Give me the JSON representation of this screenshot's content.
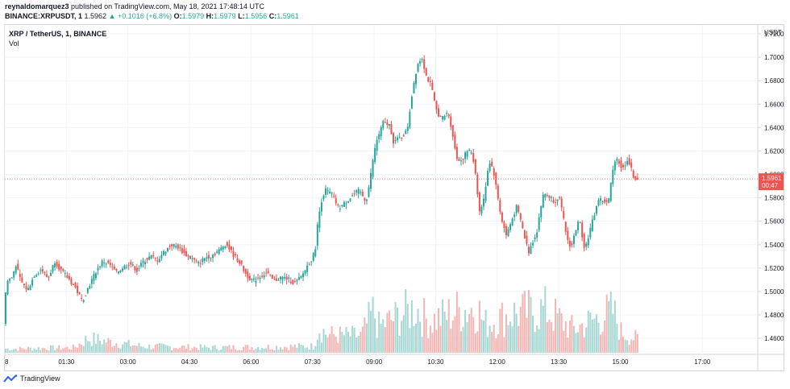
{
  "header": {
    "author": "reynaldomarquez3",
    "published_text": "published on TradingView.com, May 18, 2021 17:48:14 UTC",
    "symbol_line": "BINANCE:XRPUSDT, 1",
    "last": "1.5962",
    "change": "+0.1016 (+6.8%)",
    "o_label": "O:",
    "o_val": "1.5979",
    "h_label": "H:",
    "h_val": "1.5979",
    "l_label": "L:",
    "l_val": "1.5956",
    "c_label": "C:",
    "c_val": "1.5961"
  },
  "legend": {
    "title": "XRP / TetherUS, 1, BINANCE",
    "vol": "Vol"
  },
  "price_tag": {
    "value": "1.5961",
    "countdown": "00:47"
  },
  "footer": {
    "brand": "TradingView"
  },
  "colors": {
    "up": "#26a69a",
    "down": "#ef5350",
    "up_vol": "#a7d7d2",
    "down_vol": "#f5b5b3",
    "grid": "#f0f3fa",
    "tag": "#ef5350"
  },
  "chart_data": {
    "type": "candlestick",
    "title": "XRP / TetherUS, 1, BINANCE",
    "y_unit": "USDT",
    "y_ticks": [
      "1.4600",
      "1.4800",
      "1.5000",
      "1.5200",
      "1.5400",
      "1.5600",
      "1.5800",
      "1.6000",
      "1.6200",
      "1.6400",
      "1.6600",
      "1.6800",
      "1.7000",
      "1.7200"
    ],
    "ylim": [
      1.4463,
      1.7276
    ],
    "x_ticks": [
      "8",
      "01:30",
      "03:00",
      "04:30",
      "06:00",
      "07:30",
      "09:00",
      "10:30",
      "12:00",
      "13:30",
      "15:00",
      "17:00"
    ],
    "x_tick_minutes": [
      0,
      90,
      180,
      270,
      360,
      450,
      540,
      630,
      720,
      810,
      900,
      1020
    ],
    "x_range_minutes": [
      0,
      1101
    ],
    "last_price": 1.5961,
    "price_path": [
      [
        0,
        1.472
      ],
      [
        4,
        1.508
      ],
      [
        12,
        1.512
      ],
      [
        18,
        1.523
      ],
      [
        25,
        1.509
      ],
      [
        35,
        1.501
      ],
      [
        45,
        1.514
      ],
      [
        55,
        1.519
      ],
      [
        65,
        1.511
      ],
      [
        75,
        1.526
      ],
      [
        85,
        1.517
      ],
      [
        95,
        1.511
      ],
      [
        105,
        1.503
      ],
      [
        115,
        1.492
      ],
      [
        125,
        1.505
      ],
      [
        135,
        1.517
      ],
      [
        145,
        1.526
      ],
      [
        155,
        1.523
      ],
      [
        165,
        1.516
      ],
      [
        175,
        1.521
      ],
      [
        185,
        1.524
      ],
      [
        195,
        1.518
      ],
      [
        205,
        1.526
      ],
      [
        215,
        1.53
      ],
      [
        225,
        1.527
      ],
      [
        235,
        1.534
      ],
      [
        245,
        1.54
      ],
      [
        255,
        1.538
      ],
      [
        265,
        1.532
      ],
      [
        275,
        1.528
      ],
      [
        285,
        1.524
      ],
      [
        295,
        1.529
      ],
      [
        305,
        1.531
      ],
      [
        315,
        1.535
      ],
      [
        325,
        1.541
      ],
      [
        335,
        1.532
      ],
      [
        345,
        1.525
      ],
      [
        355,
        1.514
      ],
      [
        365,
        1.509
      ],
      [
        375,
        1.513
      ],
      [
        385,
        1.516
      ],
      [
        395,
        1.509
      ],
      [
        405,
        1.512
      ],
      [
        415,
        1.511
      ],
      [
        425,
        1.507
      ],
      [
        435,
        1.512
      ],
      [
        445,
        1.523
      ],
      [
        452,
        1.529
      ],
      [
        456,
        1.538
      ],
      [
        460,
        1.562
      ],
      [
        465,
        1.578
      ],
      [
        470,
        1.587
      ],
      [
        480,
        1.583
      ],
      [
        490,
        1.571
      ],
      [
        500,
        1.576
      ],
      [
        510,
        1.582
      ],
      [
        520,
        1.586
      ],
      [
        530,
        1.577
      ],
      [
        535,
        1.592
      ],
      [
        540,
        1.612
      ],
      [
        545,
        1.628
      ],
      [
        555,
        1.644
      ],
      [
        565,
        1.642
      ],
      [
        570,
        1.628
      ],
      [
        580,
        1.631
      ],
      [
        590,
        1.637
      ],
      [
        598,
        1.672
      ],
      [
        605,
        1.694
      ],
      [
        612,
        1.7
      ],
      [
        618,
        1.684
      ],
      [
        625,
        1.676
      ],
      [
        632,
        1.656
      ],
      [
        640,
        1.647
      ],
      [
        650,
        1.653
      ],
      [
        656,
        1.637
      ],
      [
        662,
        1.614
      ],
      [
        670,
        1.612
      ],
      [
        678,
        1.62
      ],
      [
        685,
        1.619
      ],
      [
        690,
        1.601
      ],
      [
        696,
        1.568
      ],
      [
        702,
        1.578
      ],
      [
        710,
        1.612
      ],
      [
        716,
        1.604
      ],
      [
        722,
        1.583
      ],
      [
        728,
        1.562
      ],
      [
        735,
        1.548
      ],
      [
        742,
        1.559
      ],
      [
        750,
        1.572
      ],
      [
        756,
        1.561
      ],
      [
        762,
        1.546
      ],
      [
        768,
        1.534
      ],
      [
        774,
        1.543
      ],
      [
        780,
        1.552
      ],
      [
        785,
        1.571
      ],
      [
        790,
        1.584
      ],
      [
        798,
        1.581
      ],
      [
        806,
        1.577
      ],
      [
        812,
        1.582
      ],
      [
        818,
        1.564
      ],
      [
        824,
        1.545
      ],
      [
        830,
        1.537
      ],
      [
        836,
        1.552
      ],
      [
        842,
        1.561
      ],
      [
        846,
        1.548
      ],
      [
        850,
        1.536
      ],
      [
        856,
        1.549
      ],
      [
        862,
        1.562
      ],
      [
        870,
        1.579
      ],
      [
        878,
        1.577
      ],
      [
        884,
        1.575
      ],
      [
        890,
        1.6
      ],
      [
        895,
        1.616
      ],
      [
        905,
        1.604
      ],
      [
        912,
        1.613
      ],
      [
        918,
        1.604
      ],
      [
        922,
        1.597
      ],
      [
        926,
        1.5961
      ]
    ],
    "volume_path": [
      [
        0,
        0.15
      ],
      [
        100,
        0.2
      ],
      [
        120,
        0.55
      ],
      [
        200,
        0.25
      ],
      [
        300,
        0.2
      ],
      [
        450,
        0.25
      ],
      [
        458,
        1.0
      ],
      [
        470,
        0.7
      ],
      [
        520,
        0.65
      ],
      [
        538,
        1.6
      ],
      [
        545,
        1.0
      ],
      [
        600,
        1.75
      ],
      [
        610,
        1.4
      ],
      [
        620,
        1.2
      ],
      [
        665,
        1.65
      ],
      [
        690,
        1.75
      ],
      [
        700,
        1.1
      ],
      [
        740,
        1.5
      ],
      [
        790,
        1.65
      ],
      [
        830,
        0.9
      ],
      [
        888,
        1.6
      ],
      [
        900,
        0.8
      ],
      [
        926,
        0.5
      ]
    ],
    "volume_ylim": [
      0,
      2.0
    ]
  }
}
